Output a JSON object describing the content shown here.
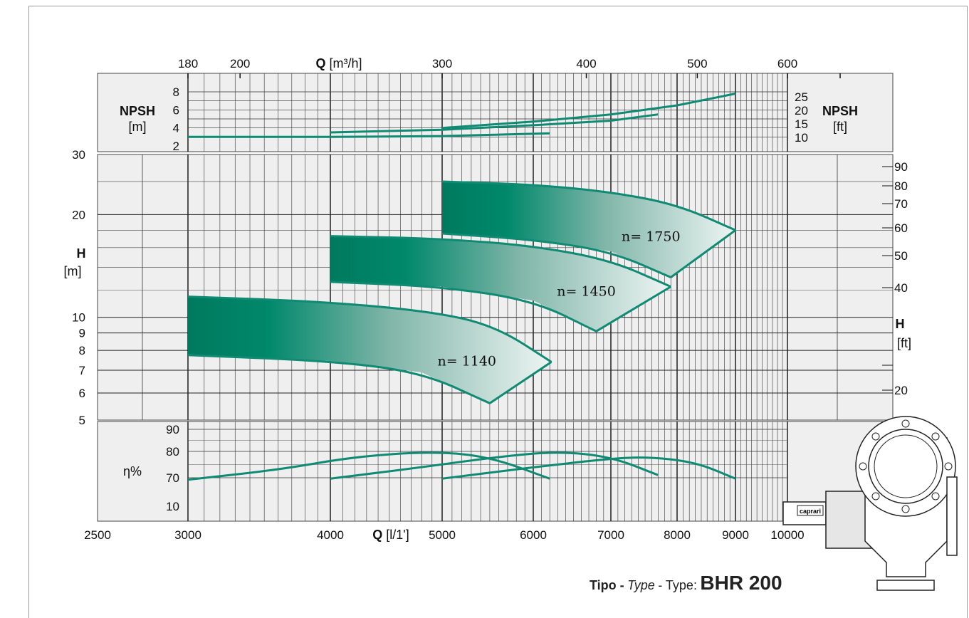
{
  "chart_data": {
    "type": "line",
    "title": "",
    "colors": {
      "curve": "#0f8a73",
      "band_dark": "#007a5e",
      "band_light": "#eef5f3",
      "panel": "#efefef",
      "grid": "#222222"
    },
    "x_bottom": {
      "label_bold": "Q",
      "label_rest": "[l/1']",
      "scale": "log",
      "range": [
        2500,
        10000
      ],
      "ticks": [
        "2500",
        "3000",
        "4000",
        "5000",
        "6000",
        "7000",
        "8000",
        "9000",
        "10000"
      ]
    },
    "x_top": {
      "label_bold": "Q",
      "label_rest": "[m³/h]",
      "ticks": [
        {
          "label": "180",
          "v": 3000
        },
        {
          "label": "200",
          "v": 3333
        },
        {
          "label": "300",
          "v": 5000
        },
        {
          "label": "400",
          "v": 6667
        },
        {
          "label": "500",
          "v": 8333
        },
        {
          "label": "600",
          "v": 10000
        }
      ]
    },
    "npsh_panel": {
      "ylabel_left": {
        "bold": "NPSH",
        "unit": "[m]"
      },
      "ylabel_right": {
        "bold": "NPSH",
        "unit": "[ft]"
      },
      "left_ticks": [
        "8",
        "6",
        "4",
        "2"
      ],
      "right_ticks": [
        "25",
        "20",
        "15",
        "10"
      ],
      "series": [
        {
          "speed": "1140",
          "x": [
            3000,
            4000,
            5000,
            6200
          ],
          "y": [
            3.0,
            3.0,
            3.1,
            3.4
          ]
        },
        {
          "speed": "1450",
          "x": [
            4000,
            5000,
            6000,
            7000,
            7700
          ],
          "y": [
            3.5,
            3.8,
            4.3,
            4.8,
            5.5
          ]
        },
        {
          "speed": "1750",
          "x": [
            5000,
            6000,
            7000,
            8000,
            9000
          ],
          "y": [
            4.0,
            4.7,
            5.5,
            6.5,
            7.8
          ]
        }
      ]
    },
    "head_panel": {
      "ylabel_left": {
        "bold": "H",
        "unit": "[m]"
      },
      "ylabel_right": {
        "bold": "H",
        "unit": "[ft]"
      },
      "scale": "log",
      "ylim": [
        5,
        30
      ],
      "left_ticks": [
        "30",
        "20",
        "10",
        "9",
        "8",
        "7",
        "6",
        "5"
      ],
      "right_ticks": [
        "90",
        "80",
        "70",
        "60",
        "50",
        "40",
        "20"
      ],
      "bands": [
        {
          "label": "n= 1140",
          "q_start": 3000,
          "upper": {
            "x": [
              3000,
              4000,
              5000,
              5600,
              6220
            ],
            "y": [
              11.5,
              11.1,
              10.3,
              9.3,
              7.4
            ]
          },
          "lower": {
            "x": [
              3000,
              4000,
              4800,
              5500
            ],
            "y": [
              7.75,
              7.45,
              6.9,
              5.6
            ]
          }
        },
        {
          "label": "n= 1450",
          "q_start": 4000,
          "upper": {
            "x": [
              4000,
              5000,
              6000,
              7000,
              7900
            ],
            "y": [
              17.3,
              17.0,
              16.2,
              14.7,
              12.3
            ]
          },
          "lower": {
            "x": [
              4000,
              5000,
              6000,
              6800
            ],
            "y": [
              12.7,
              12.3,
              11.2,
              9.1
            ]
          }
        },
        {
          "label": "n= 1750",
          "q_start": 5000,
          "upper": {
            "x": [
              5000,
              6000,
              7000,
              8000,
              9000
            ],
            "y": [
              25.0,
              24.5,
              23.3,
              21.4,
              18.0
            ]
          },
          "lower": {
            "x": [
              5000,
              6000,
              7000,
              7900
            ],
            "y": [
              17.6,
              16.9,
              15.6,
              13.1
            ]
          }
        }
      ]
    },
    "efficiency_panel": {
      "ylabel": "η%",
      "left_ticks": [
        "90",
        "80",
        "70",
        "10"
      ],
      "series": [
        {
          "speed": "1140",
          "x": [
            3000,
            3600,
            4200,
            4900,
            5500,
            6200
          ],
          "y": [
            66,
            73,
            78,
            80,
            78,
            68
          ]
        },
        {
          "speed": "1450",
          "x": [
            4000,
            4800,
            5600,
            6300,
            7000,
            7700
          ],
          "y": [
            68,
            74,
            78,
            80,
            78,
            71
          ]
        },
        {
          "speed": "1750",
          "x": [
            5000,
            6000,
            6900,
            7500,
            8300,
            9000
          ],
          "y": [
            68,
            74,
            77,
            78,
            76,
            68
          ]
        }
      ]
    }
  },
  "footer": {
    "tipo": "Tipo -",
    "type_it": "Type",
    "sep": "- Type:",
    "model": "BHR 200"
  },
  "pump": {
    "brand_plate": "caprari"
  }
}
